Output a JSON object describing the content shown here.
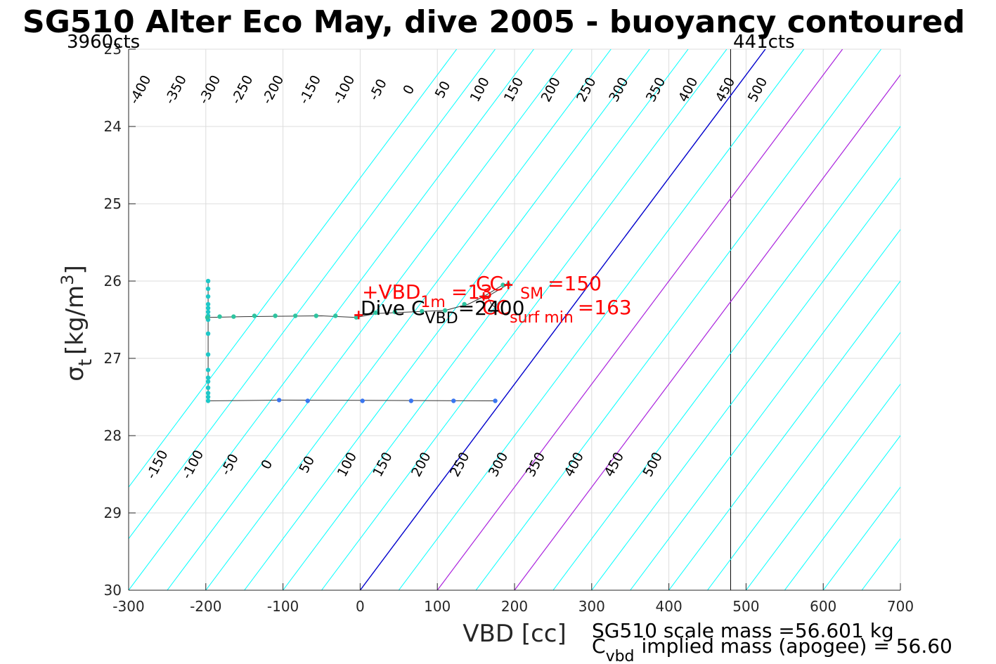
{
  "chart_data": {
    "type": "scatter",
    "title": "SG510 Alter Eco May, dive 2005 - buoyancy contoured",
    "xlabel": "VBD [cc]",
    "ylabel_main": "σ",
    "ylabel_sub": "t",
    "ylabel_unit": "[kg/m",
    "ylabel_sup": "3",
    "ylabel_close": "]",
    "xlim": [
      -300,
      700
    ],
    "ylim": [
      23,
      30
    ],
    "y_reversed": true,
    "grid": true,
    "x_ticks": [
      "-300",
      "-200",
      "-100",
      "0",
      "100",
      "200",
      "300",
      "400",
      "500",
      "600",
      "700"
    ],
    "y_ticks": [
      "23",
      "24",
      "25",
      "26",
      "27",
      "28",
      "29",
      "30"
    ],
    "top_left_label": "3960cts",
    "top_right_label": "441cts",
    "count_limit_vbd": 480,
    "buoyancy_contours": {
      "color": "#00ffff",
      "zero_color": "#0000cc",
      "special_color": "#aa22dd",
      "special_values": [
        100,
        200
      ],
      "x_at_sigma_30": [
        -400,
        -350,
        -300,
        -250,
        -200,
        -150,
        -100,
        -50,
        0,
        50,
        100,
        150,
        200,
        250,
        300,
        350,
        400,
        450,
        500,
        550,
        600,
        650,
        700,
        750,
        800
      ],
      "vbd_shift_per_sigma": 75,
      "upper_labels": [
        "-400",
        "-350",
        "-300",
        "-250",
        "-200",
        "-150",
        "-100",
        "-50",
        "0",
        "50",
        "100",
        "150",
        "200",
        "250",
        "300",
        "350",
        "400",
        "450",
        "500"
      ],
      "upper_label_x": [
        -280,
        -234,
        -190,
        -148,
        -108,
        -60,
        -16,
        28,
        68,
        112,
        160,
        204,
        252,
        298,
        340,
        388,
        430,
        478,
        520
      ],
      "upper_label_y": 23.55,
      "lower_labels": [
        "-150",
        "-100",
        "-50",
        "0",
        "50",
        "100",
        "150",
        "200",
        "250",
        "300",
        "350",
        "400",
        "450",
        "500"
      ],
      "lower_label_x": [
        -258,
        -212,
        -164,
        -116,
        -64,
        -12,
        34,
        84,
        134,
        184,
        232,
        282,
        334,
        384
      ],
      "lower_label_y": 28.4
    },
    "series": [
      {
        "color": "#1ec8c8",
        "points": [
          [
            -197,
            26.0
          ],
          [
            -197,
            26.1
          ],
          [
            -197,
            26.2
          ],
          [
            -197,
            26.3
          ],
          [
            -197,
            26.35
          ],
          [
            -197,
            26.4
          ],
          [
            -197,
            26.45
          ],
          [
            -197,
            26.5
          ],
          [
            -197,
            26.68
          ],
          [
            -197,
            26.95
          ],
          [
            -197,
            27.15
          ],
          [
            -197,
            27.25
          ],
          [
            -197,
            27.3
          ],
          [
            -197,
            27.38
          ],
          [
            -197,
            27.45
          ],
          [
            -197,
            27.5
          ],
          [
            -197,
            27.55
          ]
        ]
      },
      {
        "color": "#2ec4a0",
        "points": [
          [
            -198,
            26.47
          ],
          [
            -182,
            26.46
          ],
          [
            -164,
            26.46
          ],
          [
            -137,
            26.45
          ],
          [
            -110,
            26.45
          ],
          [
            -84,
            26.45
          ],
          [
            -57,
            26.45
          ],
          [
            -32,
            26.45
          ],
          [
            -5,
            26.47
          ],
          [
            20,
            26.41
          ],
          [
            45,
            26.4
          ],
          [
            80,
            26.39
          ],
          [
            110,
            26.38
          ],
          [
            135,
            26.3
          ],
          [
            160,
            26.2
          ],
          [
            185,
            26.05
          ],
          [
            192,
            26.04
          ]
        ]
      },
      {
        "color": "#3a76f0",
        "points": [
          [
            -105,
            27.54
          ],
          [
            -68,
            27.55
          ],
          [
            3,
            27.55
          ],
          [
            66,
            27.55
          ],
          [
            121,
            27.55
          ],
          [
            175,
            27.55
          ]
        ]
      }
    ],
    "track_path": [
      [
        -197,
        26.0
      ],
      [
        -197,
        26.47
      ],
      [
        -150,
        26.46
      ],
      [
        -50,
        26.45
      ],
      [
        -5,
        26.47
      ],
      [
        20,
        26.42
      ],
      [
        110,
        26.38
      ],
      [
        140,
        26.3
      ],
      [
        160,
        26.2
      ],
      [
        185,
        26.05
      ],
      [
        192,
        26.04
      ],
      [
        165,
        26.2
      ],
      [
        170,
        26.3
      ],
      [
        176,
        26.35
      ]
    ],
    "track_path_lower": [
      [
        -197,
        26.47
      ],
      [
        -197,
        27.55
      ],
      [
        -105,
        27.54
      ],
      [
        175,
        27.55
      ]
    ],
    "markers": [
      {
        "x": -2,
        "y": 26.44,
        "color": "#ff0000"
      },
      {
        "x": 160,
        "y": 26.2,
        "color": "#ff0000"
      },
      {
        "x": 192,
        "y": 26.05,
        "color": "#ff0000"
      }
    ],
    "annotations": {
      "vbd1m_main": "+VBD",
      "vbd1m_sub": "1m",
      "vbd1m_value": "=13",
      "ccsm_main": "CC",
      "ccsm_sub": "SM",
      "ccsm_value": "=150",
      "ccsurf_main": "CC",
      "ccsurf_sub": "surf min",
      "ccsurf_value": "=163",
      "cvbd_main": "Dive C",
      "cvbd_sub": "VBD",
      "cvbd_value": "=2400"
    },
    "footer": {
      "scale_mass": "SG510 scale mass =56.601 kg",
      "implied_main": "C",
      "implied_sub": "vbd",
      "implied_rest": "implied mass (apogee) = 56.60"
    }
  }
}
